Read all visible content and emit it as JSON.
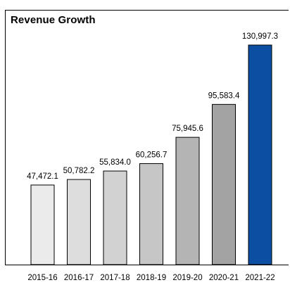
{
  "chart_data": {
    "type": "bar",
    "title": "Revenue Growth",
    "categories": [
      "2015-16",
      "2016-17",
      "2017-18",
      "2018-19",
      "2019-20",
      "2020-21",
      "2021-22"
    ],
    "values": [
      47472.1,
      50782.2,
      55834.0,
      60256.7,
      75945.6,
      95583.4,
      130997.3
    ],
    "value_labels": [
      "47,472.1",
      "50,782.2",
      "55,834.0",
      "60,256.7",
      "75,945.6",
      "95,583.4",
      "130,997.3"
    ],
    "xlabel": "",
    "ylabel": "",
    "grid": false,
    "legend": "none",
    "colors": [
      "#ebebeb",
      "#dddddd",
      "#d2d2d2",
      "#c6c6c6",
      "#b4b4b4",
      "#a3a3a3",
      "#0b4ea2"
    ]
  }
}
